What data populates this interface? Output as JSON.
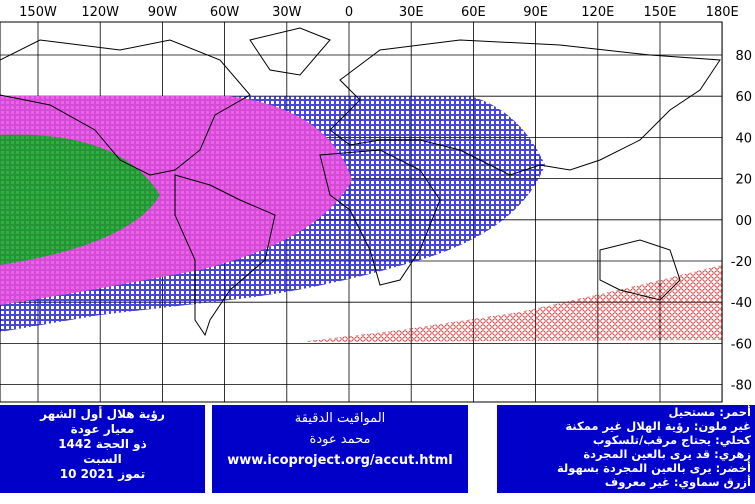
{
  "map": {
    "lon_labels": [
      "150W",
      "120W",
      "90W",
      "60W",
      "30W",
      "0",
      "30E",
      "60E",
      "90E",
      "120E",
      "150E",
      "180E"
    ],
    "lat_labels": [
      "80",
      "60",
      "40",
      "20",
      "00",
      "-20",
      "-40",
      "-60",
      "-80"
    ]
  },
  "left_box": {
    "lines": [
      "رؤية هلال أول الشهر",
      "معيار عودة",
      "ذو الحجة 1442",
      "السبت",
      "10 تموز 2021"
    ]
  },
  "middle_box": {
    "lines": [
      "المواقيت الدقيقة",
      "محمد عودة",
      "www.icoproject.org/accut.html"
    ]
  },
  "legend_box": {
    "lines": [
      "أحمر: مستحيل",
      "غير ملون: رؤية الهلال غير ممكنة",
      "كحلي: يحتاج مرقب/تلسكوب",
      "زهري: قد يرى بالعين المجردة",
      "أخضر: يرى بالعين المجردة بسهولة",
      "أزرق سماوي: غير معروف"
    ]
  }
}
